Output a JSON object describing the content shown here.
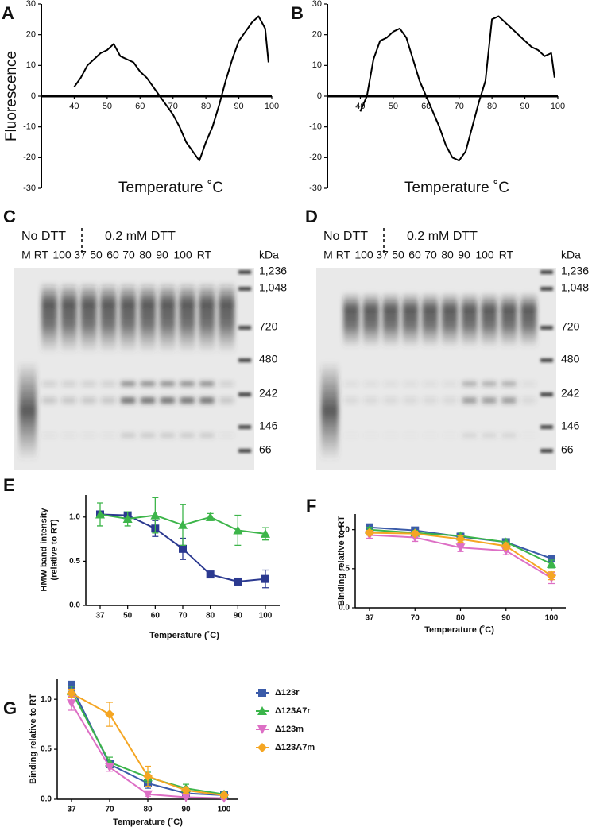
{
  "chart_data": [
    {
      "type": "line",
      "panel": "A",
      "xlabel": "Temperature ˚C",
      "ylabel": "Fluorescence",
      "x": [
        40,
        42,
        44,
        46,
        48,
        50,
        52,
        54,
        56,
        58,
        60,
        62,
        64,
        66,
        68,
        70,
        72,
        74,
        76,
        78,
        80,
        82,
        84,
        86,
        88,
        90,
        92,
        94,
        96,
        98,
        99
      ],
      "series": [
        {
          "color": "#000000",
          "values": [
            3,
            6,
            10,
            12,
            14,
            15,
            17,
            13,
            12,
            11,
            8,
            6,
            3,
            0,
            -3,
            -6,
            -10,
            -15,
            -18,
            -21,
            -15,
            -10,
            -3,
            5,
            12,
            18,
            21,
            24,
            26,
            22,
            11
          ]
        }
      ],
      "xlim": [
        30,
        100
      ],
      "ylim": [
        -30,
        30
      ],
      "xticks": [
        40,
        50,
        60,
        70,
        80,
        90,
        100
      ],
      "yticks": [
        -30,
        -20,
        -10,
        0,
        10,
        20,
        30
      ]
    },
    {
      "type": "line",
      "panel": "B",
      "xlabel": "Temperature ˚C",
      "x": [
        40,
        42,
        44,
        46,
        48,
        50,
        52,
        54,
        56,
        58,
        60,
        62,
        64,
        66,
        68,
        70,
        72,
        74,
        76,
        78,
        80,
        82,
        84,
        86,
        88,
        90,
        92,
        94,
        96,
        98,
        99
      ],
      "series": [
        {
          "color": "#000000",
          "values": [
            -5,
            0,
            12,
            18,
            19,
            21,
            22,
            19,
            12,
            5,
            0,
            -5,
            -10,
            -16,
            -20,
            -21,
            -18,
            -10,
            -2,
            5,
            25,
            26,
            24,
            22,
            20,
            18,
            16,
            15,
            13,
            14,
            6
          ]
        }
      ],
      "xlim": [
        30,
        100
      ],
      "ylim": [
        -30,
        30
      ],
      "xticks": [
        40,
        50,
        60,
        70,
        80,
        90,
        100
      ],
      "yticks": [
        -30,
        -20,
        -10,
        0,
        10,
        20,
        30
      ]
    },
    {
      "type": "line",
      "panel": "E",
      "xlabel": "Temperature (˚C)",
      "ylabel": [
        "HMW band intensity",
        "(relative to RT)"
      ],
      "categories": [
        "37",
        "50",
        "60",
        "70",
        "80",
        "90",
        "100"
      ],
      "series": [
        {
          "color": "#2b3990",
          "marker": "square",
          "values": [
            1.03,
            1.02,
            0.87,
            0.64,
            0.35,
            0.27,
            0.3
          ],
          "errors": [
            0.01,
            0.04,
            0.09,
            0.12,
            0.01,
            0.01,
            0.1
          ]
        },
        {
          "color": "#3db54a",
          "marker": "triangle",
          "values": [
            1.03,
            0.98,
            1.02,
            0.91,
            1.0,
            0.85,
            0.81
          ],
          "errors": [
            0.13,
            0.08,
            0.2,
            0.23,
            0.04,
            0.17,
            0.07
          ]
        }
      ],
      "ylim": [
        0,
        1.25
      ],
      "yticks": [
        {
          "value": 0,
          "label": "0.0"
        },
        0.5,
        {
          "value": 1,
          "label": "1.0"
        }
      ]
    },
    {
      "type": "line",
      "panel": "F",
      "xlabel": "Temperature (˚C)",
      "ylabel": "Binding relative to RT",
      "categories": [
        "37",
        "70",
        "80",
        "90",
        "100"
      ],
      "series": [
        {
          "color": "#3b5ba9",
          "marker": "square",
          "values": [
            1.03,
            0.99,
            0.91,
            0.84,
            0.63
          ],
          "errors": [
            0.02,
            0.02,
            0.03,
            0.03,
            0.03
          ]
        },
        {
          "color": "#3bb54a",
          "marker": "triangle",
          "values": [
            1.0,
            0.96,
            0.92,
            0.84,
            0.56
          ],
          "errors": [
            0.03,
            0.03,
            0.05,
            0.04,
            0.05
          ]
        },
        {
          "color": "#dd6fc5",
          "marker": "triangle-down",
          "values": [
            0.93,
            0.9,
            0.77,
            0.73,
            0.38
          ],
          "errors": [
            0.04,
            0.05,
            0.05,
            0.05,
            0.07
          ]
        },
        {
          "color": "#f5a623",
          "marker": "diamond",
          "values": [
            0.96,
            0.95,
            0.88,
            0.79,
            0.41
          ],
          "errors": [
            0.03,
            0.03,
            0.04,
            0.04,
            0.05
          ]
        }
      ],
      "ylim": [
        0,
        1.2
      ],
      "yticks": [
        {
          "value": 0,
          "label": "0.0"
        },
        0.5,
        {
          "value": 1,
          "label": "1.0"
        }
      ]
    },
    {
      "type": "line",
      "panel": "G",
      "xlabel": "Temperature (˚C)",
      "ylabel": "Binding relative to RT",
      "legend": "right",
      "categories": [
        "37",
        "70",
        "80",
        "90",
        "100"
      ],
      "series": [
        {
          "name": "Δ123r",
          "color": "#3b5ba9",
          "marker": "square",
          "values": [
            1.13,
            0.35,
            0.16,
            0.06,
            0.04
          ],
          "errors": [
            0.05,
            0.03,
            0.05,
            0.02,
            0.01
          ]
        },
        {
          "name": "Δ123A7r",
          "color": "#3bb54a",
          "marker": "triangle",
          "values": [
            1.08,
            0.37,
            0.22,
            0.11,
            0.05
          ],
          "errors": [
            0.05,
            0.05,
            0.05,
            0.04,
            0.02
          ]
        },
        {
          "name": "Δ123m",
          "color": "#dd6fc5",
          "marker": "triangle-down",
          "values": [
            0.96,
            0.32,
            0.05,
            0.02,
            0.01
          ],
          "errors": [
            0.07,
            0.04,
            0.02,
            0.01,
            0.01
          ]
        },
        {
          "name": "Δ123A7m",
          "color": "#f5a623",
          "marker": "diamond",
          "values": [
            1.06,
            0.85,
            0.23,
            0.09,
            0.04
          ],
          "errors": [
            0.04,
            0.12,
            0.1,
            0.03,
            0.02
          ]
        }
      ],
      "ylim": [
        0,
        1.2
      ],
      "yticks": [
        {
          "value": 0,
          "label": "0.0"
        },
        0.5,
        {
          "value": 1,
          "label": "1.0"
        }
      ]
    }
  ],
  "gels": [
    {
      "panel": "C",
      "left_label": "No DTT",
      "right_label": "0.2 mM DTT",
      "lanes": [
        "M",
        "RT",
        "100",
        "37",
        "50",
        "60",
        "70",
        "80",
        "90",
        "100",
        "RT"
      ],
      "unit": "kDa",
      "markers": [
        "1,236",
        "1,048",
        "720",
        "480",
        "242",
        "146",
        "66"
      ]
    },
    {
      "panel": "D",
      "left_label": "No DTT",
      "right_label": "0.2 mM DTT",
      "lanes": [
        "M",
        "RT",
        "100",
        "37",
        "50",
        "60",
        "70",
        "80",
        "90",
        "100",
        "RT"
      ],
      "unit": "kDa",
      "markers": [
        "1,236",
        "1,048",
        "720",
        "480",
        "242",
        "146",
        "66"
      ]
    }
  ]
}
